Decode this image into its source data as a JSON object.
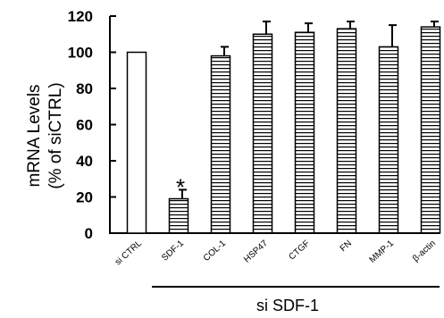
{
  "chart_data": {
    "type": "bar",
    "ylabel_line1": "mRNA Levels",
    "ylabel_line2": "(% of siCTRL)",
    "ylim": [
      0,
      120
    ],
    "yticks": [
      0,
      20,
      40,
      60,
      80,
      100,
      120
    ],
    "grid": false,
    "categories": [
      "si CTRL",
      "SDF-1",
      "COL-1",
      "HSP47",
      "CTGF",
      "FN",
      "MMP-1",
      "β-actin"
    ],
    "values": [
      100,
      19,
      98,
      110,
      111,
      113,
      103,
      114
    ],
    "errors": [
      0,
      5,
      5,
      7,
      5,
      4,
      12,
      3
    ],
    "fills": [
      "open",
      "hatched",
      "hatched",
      "hatched",
      "hatched",
      "hatched",
      "hatched",
      "hatched"
    ],
    "group_label": "si SDF-1",
    "group_categories": [
      "SDF-1",
      "COL-1",
      "HSP47",
      "CTGF",
      "FN",
      "MMP-1",
      "β-actin"
    ],
    "annotations": [
      {
        "category": "SDF-1",
        "text": "*"
      }
    ]
  }
}
